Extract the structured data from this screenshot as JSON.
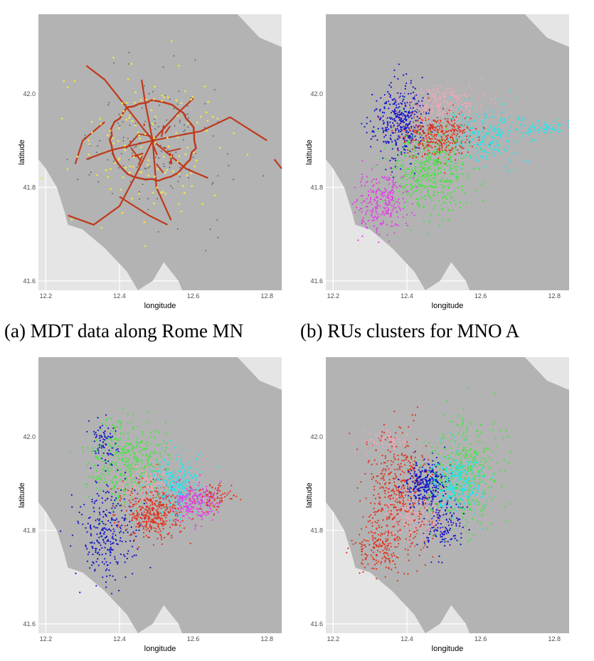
{
  "captions": {
    "a": "(a) MDT data along Rome MN",
    "b": "(b) RUs clusters for MNO A"
  },
  "colors": {
    "sea": "#e5e5e5",
    "land": "#b3b3b3",
    "grid": "#ffffff",
    "road": "#c0391b",
    "mdt_yellow": "#f2e24a",
    "mdt_dark": "#555555",
    "clusters": {
      "red": "#e0321e",
      "blue": "#1414c8",
      "green": "#3ee83a",
      "cyan": "#1ee6f0",
      "magenta": "#e23ce8",
      "pink": "#f2a8b8"
    }
  },
  "chart_data": [
    {
      "type": "scatter",
      "panel": "a",
      "xlabel": "longitude",
      "ylabel": "latitude",
      "xlim": [
        12.18,
        12.84
      ],
      "ylim": [
        41.58,
        42.17
      ],
      "xticks": [
        "12.2",
        "12.4",
        "12.6",
        "12.8"
      ],
      "yticks": [
        "41.6",
        "41.8",
        "42.0"
      ],
      "series": [
        {
          "color_key": "road",
          "approx_points": []
        },
        {
          "color_key": "mdt_yellow",
          "approx_points": [
            [
              12.3,
              42.05
            ],
            [
              12.35,
              41.95
            ],
            [
              12.42,
              41.88
            ],
            [
              12.48,
              41.9
            ],
            [
              12.55,
              41.92
            ],
            [
              12.6,
              41.85
            ],
            [
              12.4,
              41.78
            ],
            [
              12.33,
              41.74
            ],
            [
              12.5,
              41.98
            ],
            [
              12.46,
              41.82
            ]
          ]
        },
        {
          "color_key": "mdt_dark",
          "approx_points": [
            [
              12.43,
              41.93
            ],
            [
              12.5,
              41.87
            ],
            [
              12.56,
              41.9
            ],
            [
              12.38,
              41.85
            ],
            [
              12.52,
              41.83
            ]
          ]
        }
      ]
    },
    {
      "type": "scatter",
      "panel": "b",
      "xlabel": "longitude",
      "ylabel": "latitude",
      "xlim": [
        12.18,
        12.84
      ],
      "ylim": [
        41.58,
        42.17
      ],
      "xticks": [
        "12.2",
        "12.4",
        "12.6",
        "12.8"
      ],
      "yticks": [
        "41.6",
        "41.8",
        "42.0"
      ],
      "clusters": [
        {
          "color_key": "blue",
          "center": [
            12.38,
            41.94
          ],
          "spread": [
            0.035,
            0.04
          ],
          "n": 380
        },
        {
          "color_key": "red",
          "center": [
            12.48,
            41.91
          ],
          "spread": [
            0.05,
            0.025
          ],
          "n": 380
        },
        {
          "color_key": "pink",
          "center": [
            12.49,
            41.98
          ],
          "spread": [
            0.06,
            0.02
          ],
          "n": 250
        },
        {
          "color_key": "cyan",
          "center": [
            12.62,
            41.91
          ],
          "spread": [
            0.06,
            0.035
          ],
          "n": 280
        },
        {
          "color_key": "cyan",
          "center": [
            12.78,
            41.925
          ],
          "spread": [
            0.03,
            0.006
          ],
          "n": 60
        },
        {
          "color_key": "green",
          "center": [
            12.46,
            41.83
          ],
          "spread": [
            0.055,
            0.04
          ],
          "n": 420
        },
        {
          "color_key": "magenta",
          "center": [
            12.33,
            41.77
          ],
          "spread": [
            0.035,
            0.03
          ],
          "n": 260
        }
      ]
    },
    {
      "type": "scatter",
      "panel": "c",
      "xlabel": "longitude",
      "ylabel": "latitude",
      "xlim": [
        12.18,
        12.84
      ],
      "ylim": [
        41.58,
        42.17
      ],
      "xticks": [
        "12.2",
        "12.4",
        "12.6",
        "12.8"
      ],
      "yticks": [
        "41.6",
        "41.8",
        "42.0"
      ],
      "clusters": [
        {
          "color_key": "green",
          "center": [
            12.42,
            41.95
          ],
          "spread": [
            0.05,
            0.045
          ],
          "n": 400
        },
        {
          "color_key": "blue",
          "center": [
            12.36,
            41.99
          ],
          "spread": [
            0.02,
            0.03
          ],
          "n": 80
        },
        {
          "color_key": "blue",
          "center": [
            12.37,
            41.79
          ],
          "spread": [
            0.04,
            0.05
          ],
          "n": 280
        },
        {
          "color_key": "red",
          "center": [
            12.49,
            41.84
          ],
          "spread": [
            0.04,
            0.03
          ],
          "n": 420
        },
        {
          "color_key": "red",
          "center": [
            12.65,
            41.87
          ],
          "spread": [
            0.03,
            0.015
          ],
          "n": 90
        },
        {
          "color_key": "cyan",
          "center": [
            12.55,
            41.9
          ],
          "spread": [
            0.035,
            0.03
          ],
          "n": 280
        },
        {
          "color_key": "magenta",
          "center": [
            12.6,
            41.86
          ],
          "spread": [
            0.03,
            0.02
          ],
          "n": 200
        },
        {
          "color_key": "pink",
          "center": [
            12.47,
            41.895
          ],
          "spread": [
            0.03,
            0.02
          ],
          "n": 120
        }
      ]
    },
    {
      "type": "scatter",
      "panel": "d",
      "xlabel": "longitude",
      "ylabel": "latitude",
      "xlim": [
        12.18,
        12.84
      ],
      "ylim": [
        41.58,
        42.17
      ],
      "xticks": [
        "12.2",
        "12.4",
        "12.6",
        "12.8"
      ],
      "yticks": [
        "41.6",
        "41.8",
        "42.0"
      ],
      "clusters": [
        {
          "color_key": "red",
          "center": [
            12.38,
            41.87
          ],
          "spread": [
            0.045,
            0.07
          ],
          "n": 480
        },
        {
          "color_key": "red",
          "center": [
            12.32,
            41.76
          ],
          "spread": [
            0.035,
            0.025
          ],
          "n": 140
        },
        {
          "color_key": "blue",
          "center": [
            12.45,
            41.9
          ],
          "spread": [
            0.03,
            0.025
          ],
          "n": 300
        },
        {
          "color_key": "blue",
          "center": [
            12.5,
            41.81
          ],
          "spread": [
            0.03,
            0.03
          ],
          "n": 150
        },
        {
          "color_key": "green",
          "center": [
            12.55,
            41.92
          ],
          "spread": [
            0.05,
            0.06
          ],
          "n": 380
        },
        {
          "color_key": "cyan",
          "center": [
            12.54,
            41.9
          ],
          "spread": [
            0.035,
            0.03
          ],
          "n": 280
        },
        {
          "color_key": "pink",
          "center": [
            12.42,
            41.83
          ],
          "spread": [
            0.04,
            0.03
          ],
          "n": 180
        },
        {
          "color_key": "pink",
          "center": [
            12.35,
            41.99
          ],
          "spread": [
            0.03,
            0.01
          ],
          "n": 60
        }
      ]
    }
  ]
}
